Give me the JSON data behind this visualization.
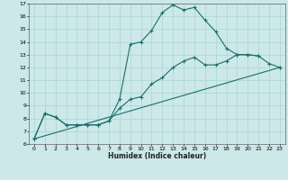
{
  "title": "",
  "xlabel": "Humidex (Indice chaleur)",
  "ylabel": "",
  "xlim": [
    -0.5,
    23.5
  ],
  "ylim": [
    6,
    17
  ],
  "xticks": [
    0,
    1,
    2,
    3,
    4,
    5,
    6,
    7,
    8,
    9,
    10,
    11,
    12,
    13,
    14,
    15,
    16,
    17,
    18,
    19,
    20,
    21,
    22,
    23
  ],
  "yticks": [
    6,
    7,
    8,
    9,
    10,
    11,
    12,
    13,
    14,
    15,
    16,
    17
  ],
  "bg_color": "#cce8e8",
  "grid_color": "#aad4d4",
  "line_color": "#1a6e6e",
  "line1_x": [
    0,
    1,
    2,
    3,
    4,
    5,
    6,
    7,
    8,
    9,
    10,
    11,
    12,
    13,
    14,
    15,
    16,
    17,
    18,
    19,
    20,
    21
  ],
  "line1_y": [
    6.4,
    8.4,
    8.1,
    7.5,
    7.5,
    7.5,
    7.5,
    7.8,
    9.5,
    13.8,
    14.0,
    14.9,
    16.3,
    16.9,
    16.5,
    16.7,
    15.7,
    14.8,
    13.5,
    13.0,
    13.0,
    12.9
  ],
  "line2_x": [
    0,
    1,
    2,
    3,
    4,
    5,
    6,
    7,
    8,
    9,
    10,
    11,
    12,
    13,
    14,
    15,
    16,
    17,
    18,
    19,
    20,
    21,
    22,
    23
  ],
  "line2_y": [
    6.4,
    8.4,
    8.1,
    7.5,
    7.5,
    7.5,
    7.5,
    7.8,
    8.8,
    9.5,
    9.7,
    10.7,
    11.2,
    12.0,
    12.5,
    12.8,
    12.2,
    12.2,
    12.5,
    13.0,
    13.0,
    12.9,
    12.3,
    12.0
  ],
  "line3_x": [
    0,
    23
  ],
  "line3_y": [
    6.4,
    12.0
  ]
}
